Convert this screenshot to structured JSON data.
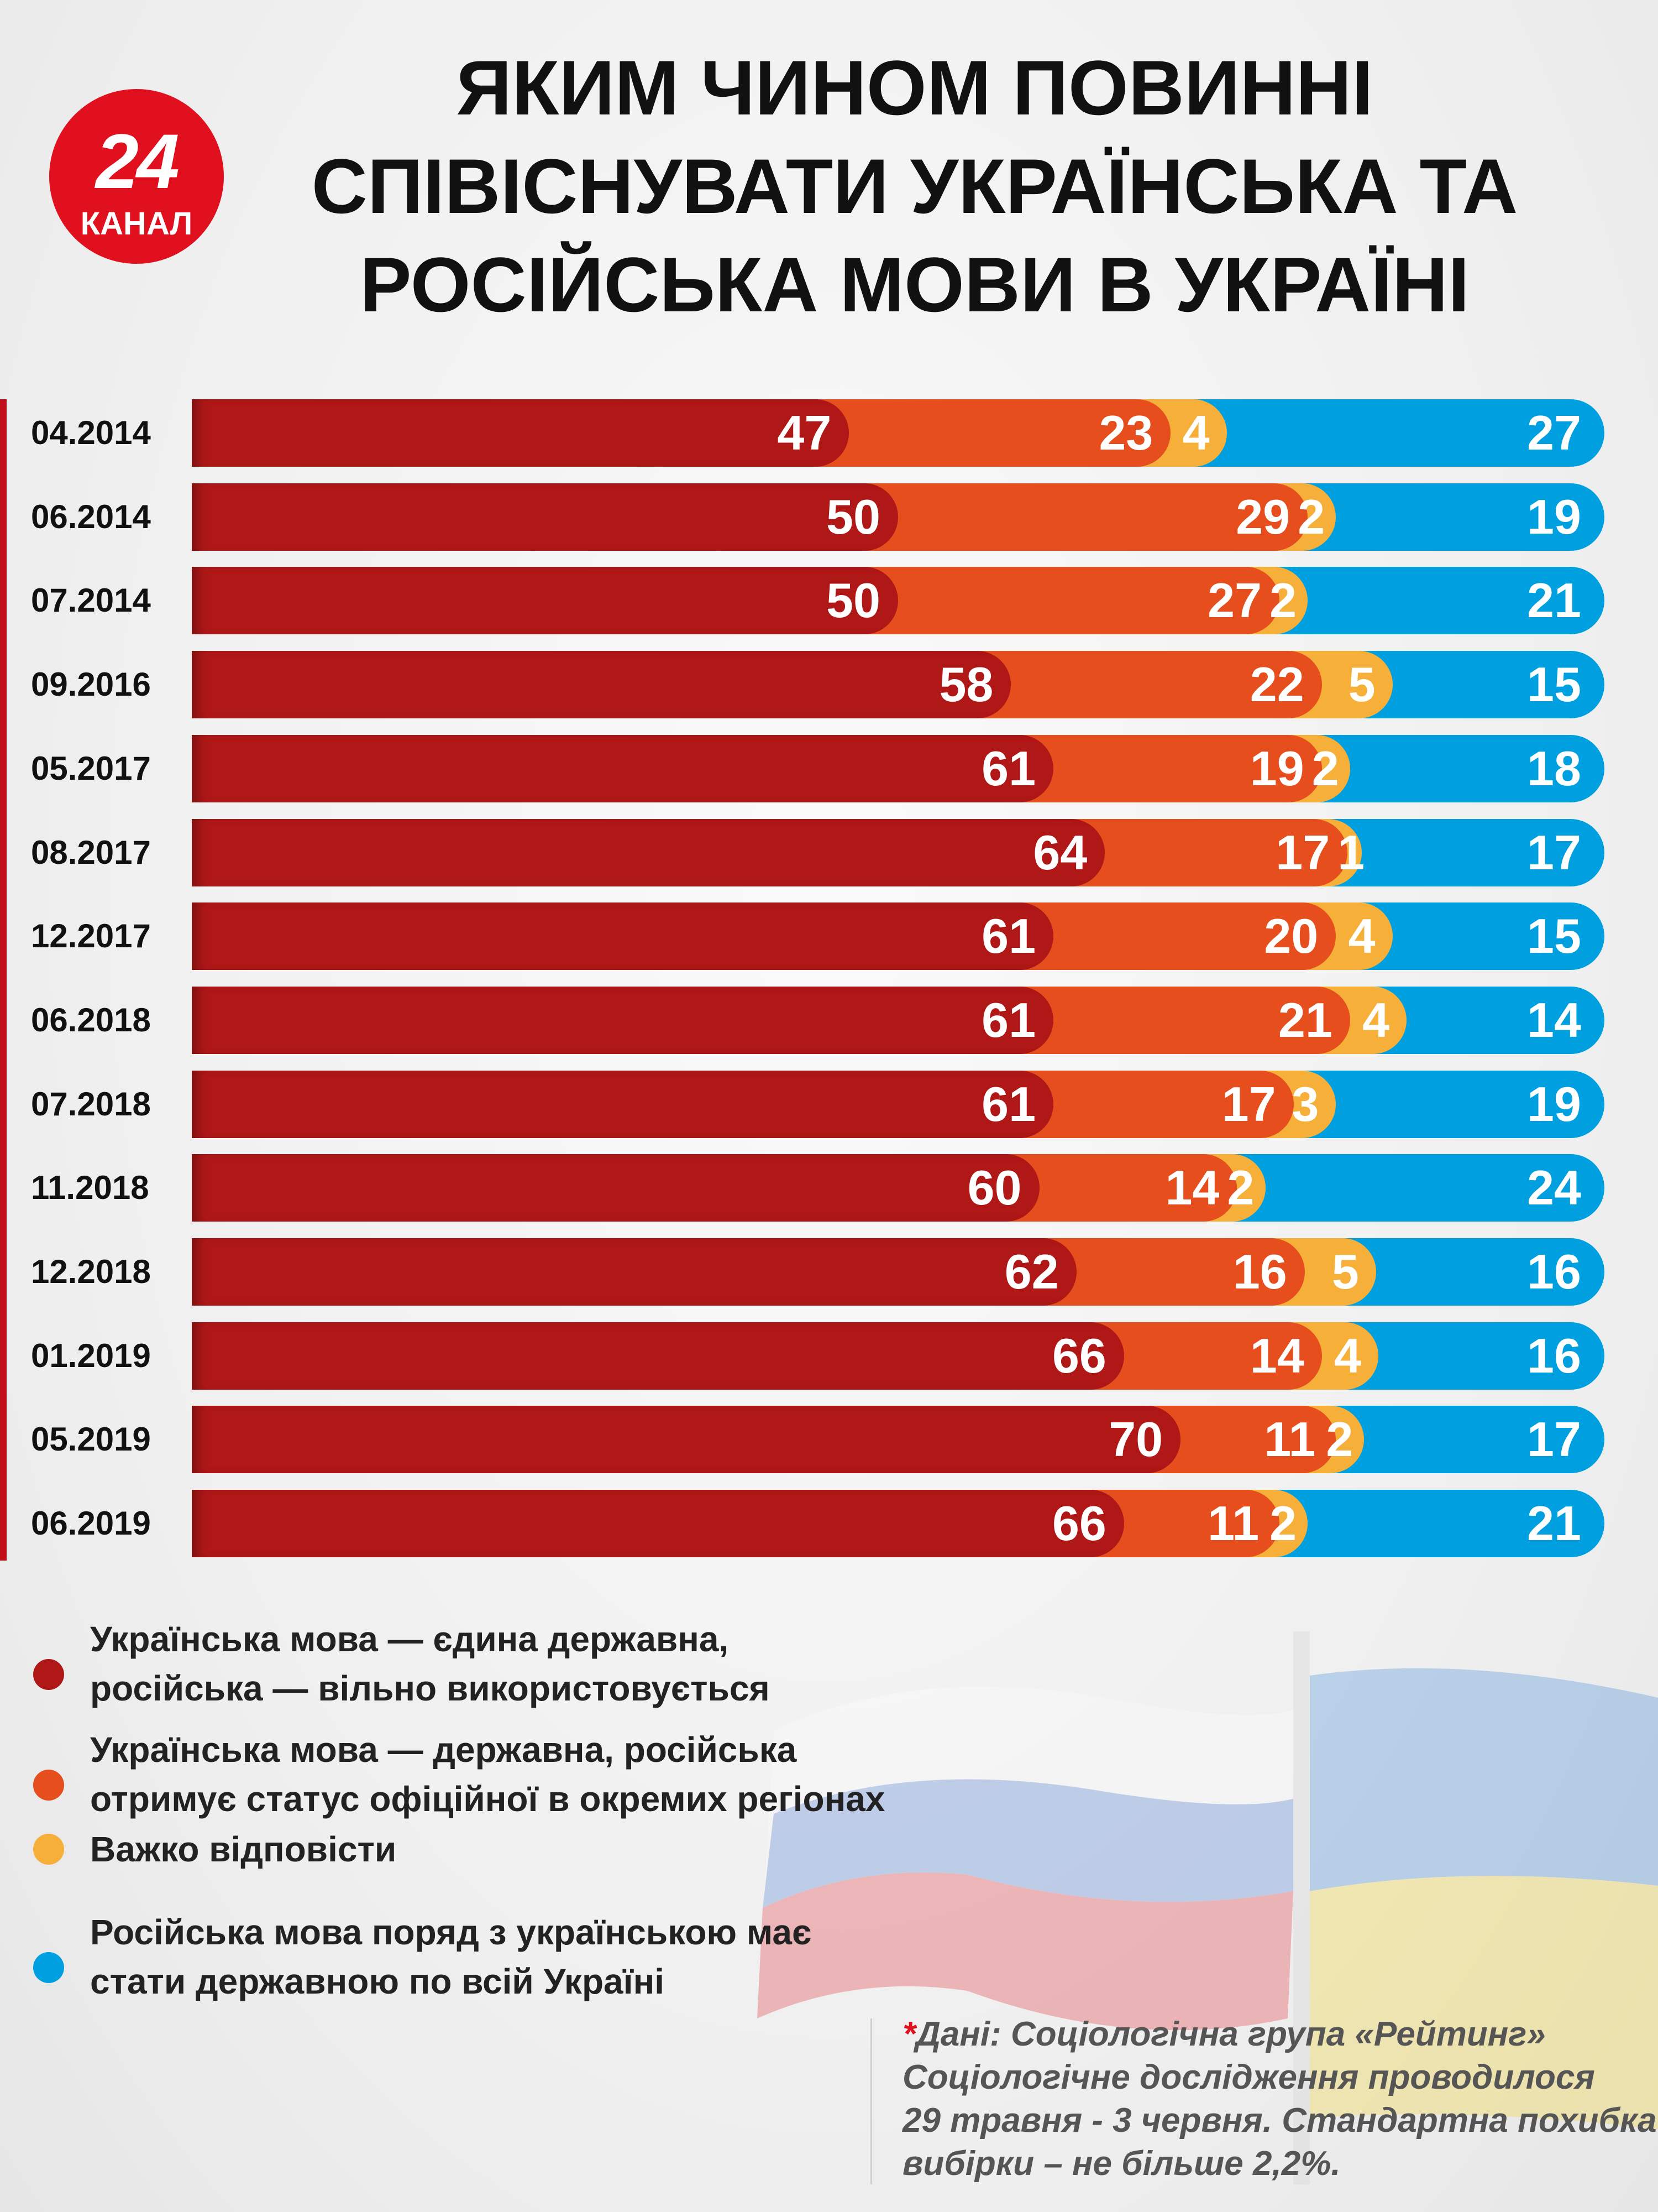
{
  "logo": {
    "number": "24",
    "text": "КАНАЛ"
  },
  "title": [
    "ЯКИМ ЧИНОМ ПОВИННІ",
    "СПІВІСНУВАТИ УКРАЇНСЬКА ТА",
    "РОСІЙСЬКА МОВИ В УКРАЇНІ"
  ],
  "colors": {
    "s1": "#b01717",
    "s2": "#e64e1d",
    "s3": "#f6b03a",
    "s4": "#00a0e0"
  },
  "chart_data": {
    "type": "bar",
    "stacked": true,
    "orientation": "horizontal",
    "categories": [
      "04.2014",
      "06.2014",
      "07.2014",
      "09.2016",
      "05.2017",
      "08.2017",
      "12.2017",
      "06.2018",
      "07.2018",
      "11.2018",
      "12.2018",
      "01.2019",
      "05.2019",
      "06.2019"
    ],
    "series": [
      {
        "name": "Українська мова — єдина державна, російська — вільно використовується",
        "color": "#b01717",
        "values": [
          47,
          50,
          50,
          58,
          61,
          64,
          61,
          61,
          61,
          60,
          62,
          66,
          70,
          66
        ]
      },
      {
        "name": "Українська мова — державна, російська отримує статус офіційної в окремих регіонах",
        "color": "#e64e1d",
        "values": [
          23,
          29,
          27,
          22,
          19,
          17,
          20,
          21,
          17,
          14,
          16,
          14,
          11,
          11
        ]
      },
      {
        "name": "Важко відповісти",
        "color": "#f6b03a",
        "values": [
          4,
          2,
          2,
          5,
          2,
          1,
          4,
          4,
          3,
          2,
          5,
          4,
          2,
          2
        ]
      },
      {
        "name": "Російська мова поряд з українською має стати державною по всій Україні",
        "color": "#00a0e0",
        "values": [
          27,
          19,
          21,
          15,
          18,
          17,
          15,
          14,
          19,
          24,
          16,
          16,
          17,
          21
        ]
      }
    ]
  },
  "legend": [
    {
      "lines": [
        "Українська мова — єдина державна,",
        "російська — вільно використовується"
      ]
    },
    {
      "lines": [
        "Українська мова — державна, російська",
        "отримує статус офіційної в окремих регіонах"
      ]
    },
    {
      "lines": [
        "Важко відповісти"
      ]
    },
    {
      "lines": [
        "Російська мова поряд з українською має",
        "стати державною по всій Україні"
      ]
    }
  ],
  "source": {
    "asterisk": "*",
    "lines": [
      "Дані:  Соціологічна група «Рейтинг»",
      "Соціологічне дослідження проводилося",
      "29 травня - 3 червня. Стандартна похибка",
      "вибірки – не більше 2,2%."
    ]
  }
}
